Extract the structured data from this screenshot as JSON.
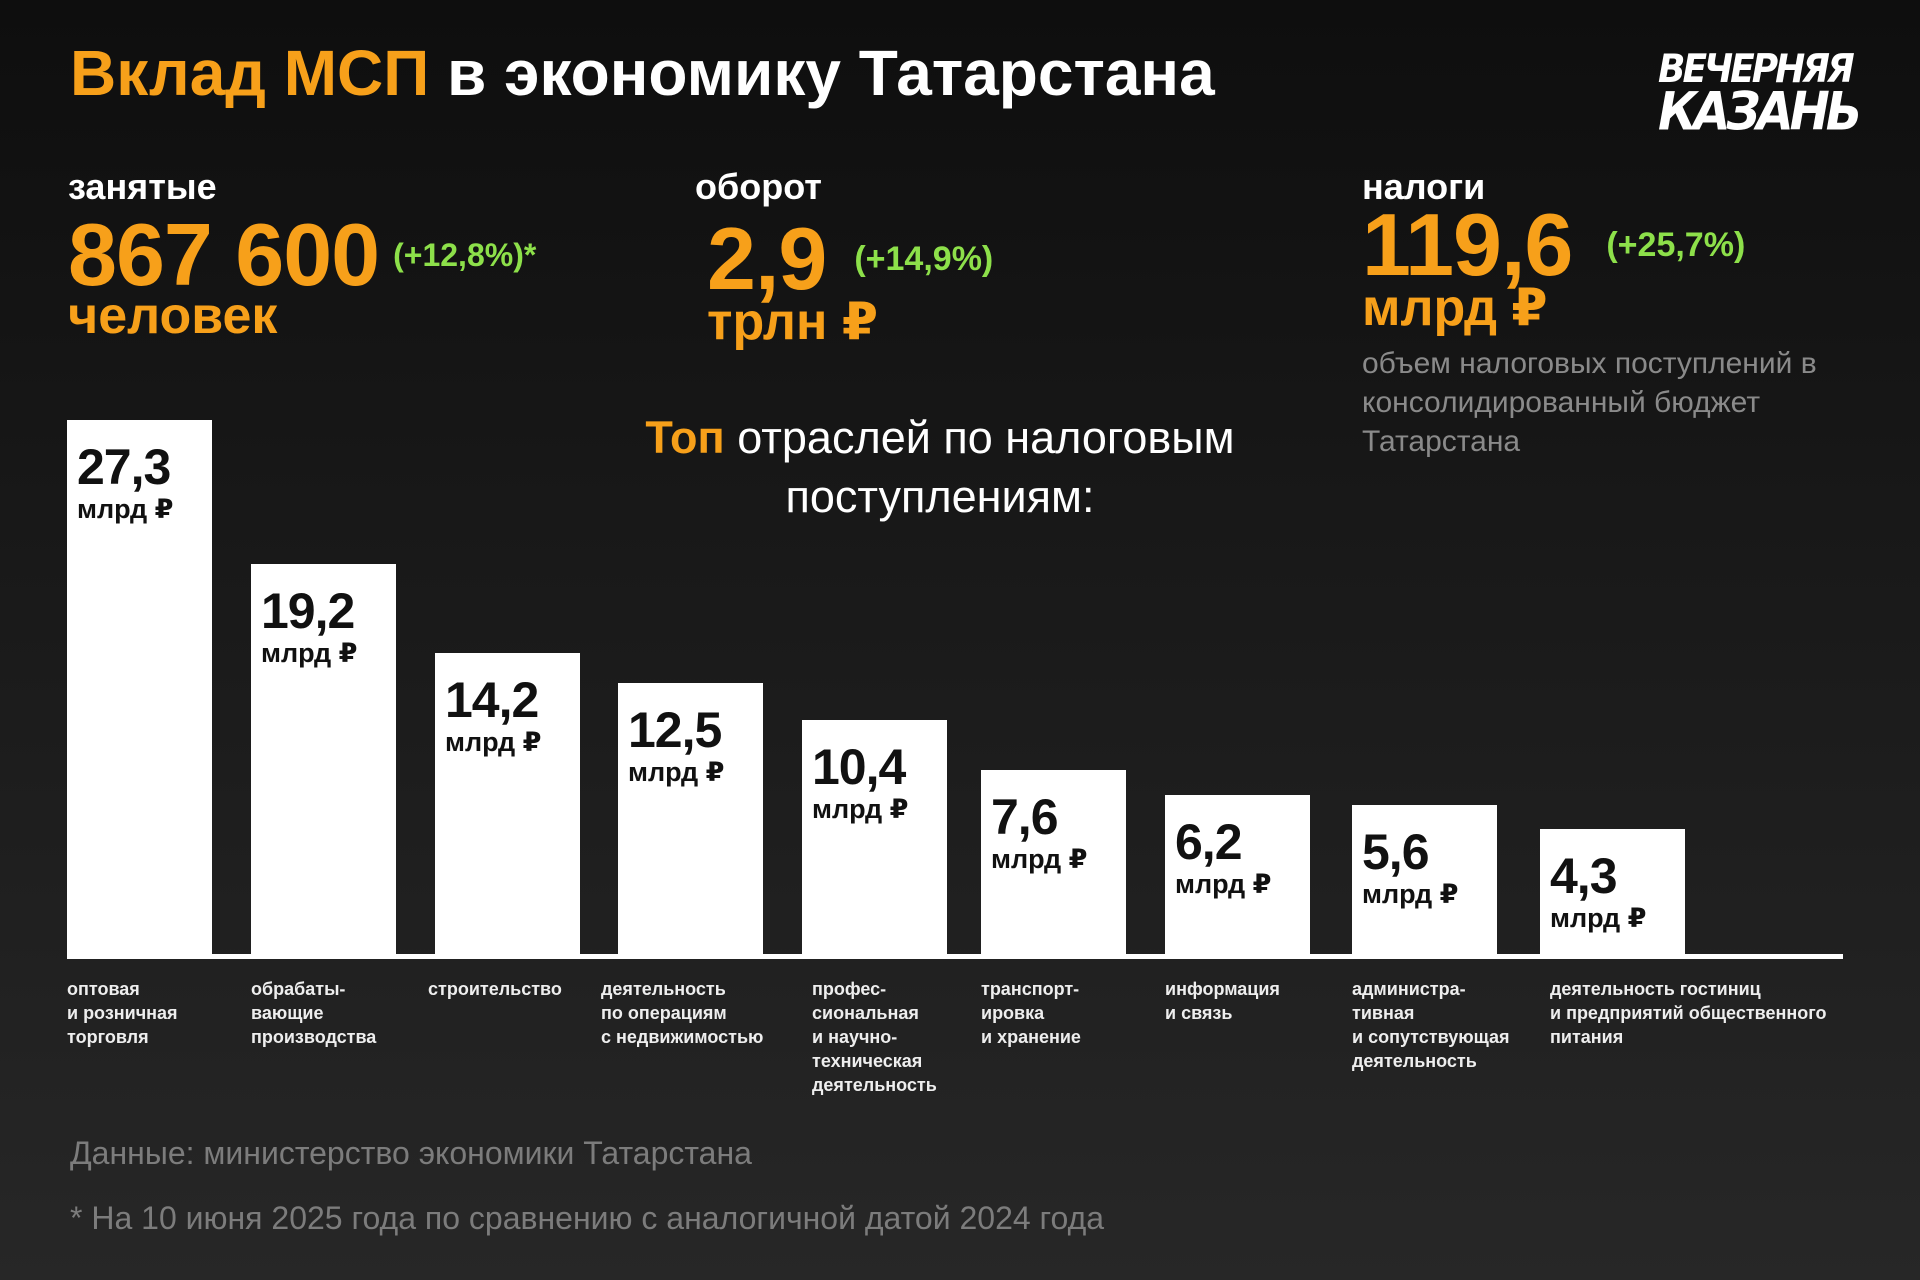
{
  "title": {
    "highlight": "Вклад МСП",
    "rest": " в экономику Татарстана"
  },
  "logo": {
    "line1": "ВЕЧЕРНЯЯ",
    "line2": "КАЗАНЬ"
  },
  "stats": [
    {
      "label": "занятые",
      "value": "867 600",
      "change": "(+12,8%)*",
      "unit": "человек"
    },
    {
      "label": "оборот",
      "value": "2,9",
      "change": "(+14,9%)",
      "unit": "трлн ₽"
    },
    {
      "label": "налоги",
      "value": "119,6",
      "change": "(+25,7%)",
      "unit": "млрд ₽",
      "note": "объем налоговых поступлений в консолидированный бюджет Татарстана"
    }
  ],
  "subhead": {
    "highlight": "Топ",
    "rest": " отраслей по налоговым поступлениям:"
  },
  "chart_data": {
    "type": "bar",
    "title": "Топ отраслей по налоговым поступлениям",
    "unit": "млрд ₽",
    "categories": [
      "оптовая\nи розничная\nторговля",
      "обрабаты-\nвающие\nпроизводства",
      "строительство",
      "деятельность\nпо операциям\nс недвижимостью",
      "профес-\nсиональная\nи научно-\nтехническая\nдеятельность",
      "транспорт-\nировка\nи хранение",
      "информация\nи связь",
      "администра-\nтивная\nи сопутствующая\nдеятельность",
      "деятельность гостиниц\nи предприятий общественного\nпитания"
    ],
    "values": [
      27.3,
      19.2,
      14.2,
      12.5,
      10.4,
      7.6,
      6.2,
      5.6,
      4.3
    ],
    "value_labels": [
      "27,3",
      "19,2",
      "14,2",
      "12,5",
      "10,4",
      "7,6",
      "6,2",
      "5,6",
      "4,3"
    ]
  },
  "footer": {
    "source": "Данные: министерство экономики Татарстана",
    "footnote": "* На 10 июня 2025 года по сравнению с аналогичной датой 2024 года"
  },
  "colors": {
    "accent": "#f7a01a",
    "positive": "#8de04a"
  }
}
